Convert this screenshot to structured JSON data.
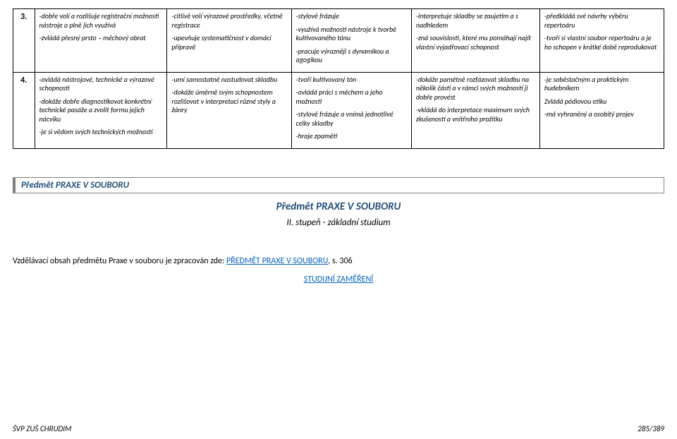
{
  "colors": {
    "text": "#000000",
    "border": "#000000",
    "section_border": "#7f7f7f",
    "heading_blue": "#1f4e79",
    "link_blue": "#0563c1",
    "background": "#ffffff"
  },
  "table": {
    "rows": [
      {
        "num": "3.",
        "cells": [
          "-dobře volí a rozlišuje registrační možnosti nástroje a plně jich využívá\n\n-zvládá přesný prsto – měchový obrat",
          "-citlivě volí výrazové prostředky, včetně registrace\n\n-upevňuje systematičnost v domácí přípravě",
          "-stylově frázuje\n\n-využívá možností nástroje k tvorbě kultivovaného tónu\n\n-pracuje výrazněji s dynamikou a agogikou",
          "-interpretuje skladby se zaujetím a s nadhledem\n\n-zná souvislosti, které mu pomáhají najít vlastní vyjadřovací schopnost",
          "-předkládá své návrhy výběru repertoáru\n\n-tvoří si vlastní soubor repertoáru a je ho schopen v krátké době reprodukovat"
        ]
      },
      {
        "num": "4.",
        "cells": [
          "-ovládá nástrojové, technické a výrazové schopnosti\n\n-dokáže dobře diagnostikovat konkrétní technické pasáže a zvolit formu jejich nácviku\n\n-je si vědom svých technických možností",
          "-umí samostatně nastudovat skladbu\n\n-dokáže úměrně svým schopnostem rozlišovat v interpretaci různé styly a žánry",
          "-tvoří kultivovaný tón\n\n-ovládá práci s měchem a jeho možnosti\n\n-stylově frázuje a vnímá jednotlivé celky skladby\n\n-hraje zpaměti",
          "-dokáže pamětně rozfázovat skladbu na několik částí a v rámci svých možností ji dobře provést\n\n-vkládá do interpretace maximum svých zkušeností a vnitřního prožitku",
          "-je soběstačným a praktickým hudebníkem\n\nZvládá pódiovou etiku\n\n-má vyhraněný a osobitý projev"
        ]
      }
    ]
  },
  "section": {
    "bar": "Předmět PRAXE V SOUBORU",
    "title": "Předmět PRAXE V SOUBORU",
    "sub": "II. stupeň - základní studium"
  },
  "paragraph": {
    "prefix": "Vzdělávací obsah předmětu Praxe v souboru je zpracován zde:  ",
    "link_text": "PŘEDMĚT PRAXE V SOUBORU",
    "suffix": ", s. 306"
  },
  "zamereni": "STUDIJNÍ ZAMĚŘENÍ",
  "footer": {
    "left": "ŠVP ZUŠ CHRUDIM",
    "right": "285/389"
  }
}
